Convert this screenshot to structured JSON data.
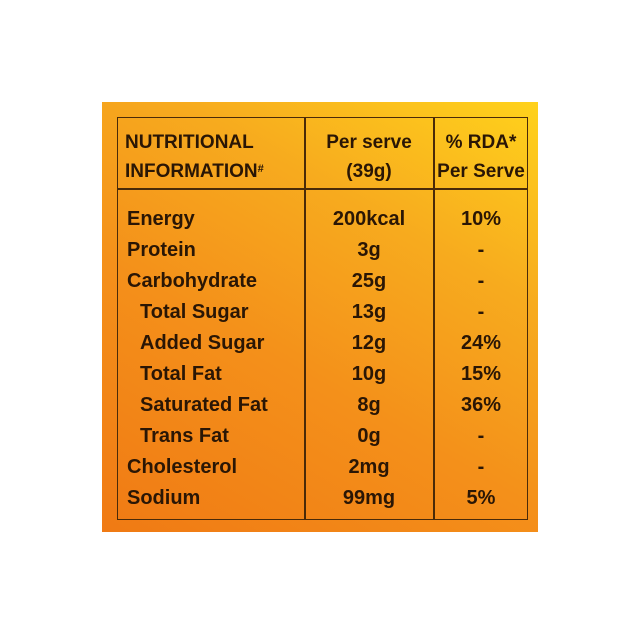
{
  "header": {
    "col1_line1": "NUTRITIONAL",
    "col1_line2": "INFORMATION",
    "col1_mark": "#",
    "col2_line1": "Per serve",
    "col2_line2": "(39g)",
    "col3_line1": "% RDA*",
    "col3_line2": "Per Serve"
  },
  "rows": [
    {
      "name": "Energy",
      "value": "200kcal",
      "rda": "10%"
    },
    {
      "name": "Protein",
      "value": "3g",
      "rda": "-"
    },
    {
      "name": "Carbohydrate",
      "value": "25g",
      "rda": "-"
    },
    {
      "name": "Total Sugar",
      "value": "13g",
      "rda": "-"
    },
    {
      "name": "Added Sugar",
      "value": "12g",
      "rda": "24%"
    },
    {
      "name": "Total Fat",
      "value": "10g",
      "rda": "15%"
    },
    {
      "name": "Saturated Fat",
      "value": "8g",
      "rda": "36%"
    },
    {
      "name": "Trans Fat",
      "value": "0g",
      "rda": "-"
    },
    {
      "name": "Cholesterol",
      "value": "2mg",
      "rda": "-"
    },
    {
      "name": "Sodium",
      "value": "99mg",
      "rda": "5%"
    }
  ]
}
